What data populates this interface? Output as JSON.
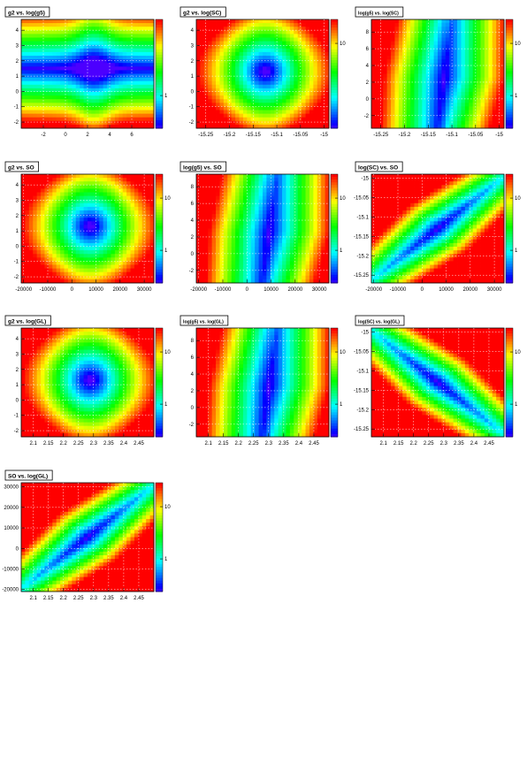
{
  "footer_text": "",
  "chart_data": [
    {
      "type": "heatmap",
      "title": "g2 vs. log(g5)",
      "pattern": "band",
      "xticks": [
        "-2",
        "0",
        "2",
        "4",
        "6"
      ],
      "xlim": [
        -4,
        8
      ],
      "yticks": [
        "-2",
        "-1",
        "0",
        "1",
        "2",
        "3",
        "4"
      ],
      "ylim": [
        -2.4,
        4.7
      ],
      "zticks": [
        "1"
      ],
      "zlog": true,
      "center": [
        2.8,
        1.1
      ]
    },
    {
      "type": "heatmap",
      "title": "g2 vs. log(SC)",
      "pattern": "blob",
      "xticks": [
        "-15.25",
        "-15.2",
        "-15.15",
        "-15.1",
        "-15.05",
        "-15"
      ],
      "xlim": [
        -15.27,
        -14.99
      ],
      "yticks": [
        "-2",
        "-1",
        "0",
        "1",
        "2",
        "3",
        "4"
      ],
      "ylim": [
        -2.4,
        4.7
      ],
      "zticks": [
        "10"
      ],
      "zlog": true,
      "center": [
        -15.12,
        1.1
      ]
    },
    {
      "type": "heatmap",
      "title": "log(g5) vs. log(SC)",
      "pattern": "vband",
      "xticks": [
        "-15.25",
        "-15.2",
        "-15.15",
        "-15.1",
        "-15.05",
        "-15"
      ],
      "xlim": [
        -15.27,
        -14.99
      ],
      "yticks": [
        "-2",
        "0",
        "2",
        "4",
        "6",
        "8"
      ],
      "ylim": [
        -3.5,
        9.5
      ],
      "zticks": [
        "1",
        "10"
      ],
      "zlog": true,
      "center": [
        -15.12,
        3.0
      ]
    },
    {
      "type": "heatmap",
      "title": "g2 vs. SO",
      "pattern": "blob",
      "xticks": [
        "-20000",
        "-10000",
        "0",
        "10000",
        "20000",
        "30000"
      ],
      "xlim": [
        -21000,
        34000
      ],
      "yticks": [
        "-2",
        "-1",
        "0",
        "1",
        "2",
        "3",
        "4"
      ],
      "ylim": [
        -2.4,
        4.7
      ],
      "zticks": [
        "1",
        "10"
      ],
      "zlog": true,
      "center": [
        6000,
        1.1
      ]
    },
    {
      "type": "heatmap",
      "title": "log(g5) vs. SO",
      "pattern": "vband",
      "xticks": [
        "-20000",
        "-10000",
        "0",
        "10000",
        "20000",
        "30000"
      ],
      "xlim": [
        -21000,
        34000
      ],
      "yticks": [
        "-2",
        "0",
        "2",
        "4",
        "6",
        "8"
      ],
      "ylim": [
        -3.5,
        9.5
      ],
      "zticks": [
        "1",
        "10"
      ],
      "zlog": true,
      "center": [
        6000,
        3.0
      ]
    },
    {
      "type": "heatmap",
      "title": "log(SC) vs. SO",
      "pattern": "diagpos",
      "xticks": [
        "-20000",
        "-10000",
        "0",
        "10000",
        "20000",
        "30000"
      ],
      "xlim": [
        -21000,
        34000
      ],
      "yticks": [
        "-15.25",
        "-15.2",
        "-15.15",
        "-15.1",
        "-15.05",
        "-15"
      ],
      "ylim": [
        -15.27,
        -14.99
      ],
      "zticks": [
        "1",
        "10"
      ],
      "zlog": true,
      "center": [
        6000,
        -15.12
      ]
    },
    {
      "type": "heatmap",
      "title": "g2 vs. log(GL)",
      "pattern": "blob",
      "xticks": [
        "2.1",
        "2.15",
        "2.2",
        "2.25",
        "2.3",
        "2.35",
        "2.4",
        "2.45"
      ],
      "xlim": [
        2.06,
        2.5
      ],
      "yticks": [
        "-2",
        "-1",
        "0",
        "1",
        "2",
        "3",
        "4"
      ],
      "ylim": [
        -2.4,
        4.7
      ],
      "zticks": [
        "1",
        "10"
      ],
      "zlog": true,
      "center": [
        2.28,
        1.0
      ]
    },
    {
      "type": "heatmap",
      "title": "log(g5) vs. log(GL)",
      "pattern": "vband",
      "xticks": [
        "2.1",
        "2.15",
        "2.2",
        "2.25",
        "2.3",
        "2.35",
        "2.4",
        "2.45"
      ],
      "xlim": [
        2.06,
        2.5
      ],
      "yticks": [
        "-2",
        "0",
        "2",
        "4",
        "6",
        "8"
      ],
      "ylim": [
        -3.5,
        9.5
      ],
      "zticks": [
        "1",
        "10"
      ],
      "zlog": true,
      "center": [
        2.28,
        3.0
      ]
    },
    {
      "type": "heatmap",
      "title": "log(SC) vs. log(GL)",
      "pattern": "diagneg",
      "xticks": [
        "2.1",
        "2.15",
        "2.2",
        "2.25",
        "2.3",
        "2.35",
        "2.4",
        "2.45"
      ],
      "xlim": [
        2.06,
        2.5
      ],
      "yticks": [
        "-15.25",
        "-15.2",
        "-15.15",
        "-15.1",
        "-15.05",
        "-15"
      ],
      "ylim": [
        -15.27,
        -14.99
      ],
      "zticks": [
        "1",
        "10"
      ],
      "zlog": true,
      "center": [
        2.28,
        -15.12
      ]
    },
    {
      "type": "heatmap",
      "title": "SO vs. log(GL)",
      "pattern": "diagpos",
      "xticks": [
        "2.1",
        "2.15",
        "2.2",
        "2.25",
        "2.3",
        "2.35",
        "2.4",
        "2.45"
      ],
      "xlim": [
        2.06,
        2.5
      ],
      "yticks": [
        "-20000",
        "-10000",
        "0",
        "10000",
        "20000",
        "30000"
      ],
      "ylim": [
        -21000,
        32000
      ],
      "zticks": [
        "1",
        "10"
      ],
      "zlog": true,
      "center": [
        2.28,
        6000
      ]
    }
  ]
}
